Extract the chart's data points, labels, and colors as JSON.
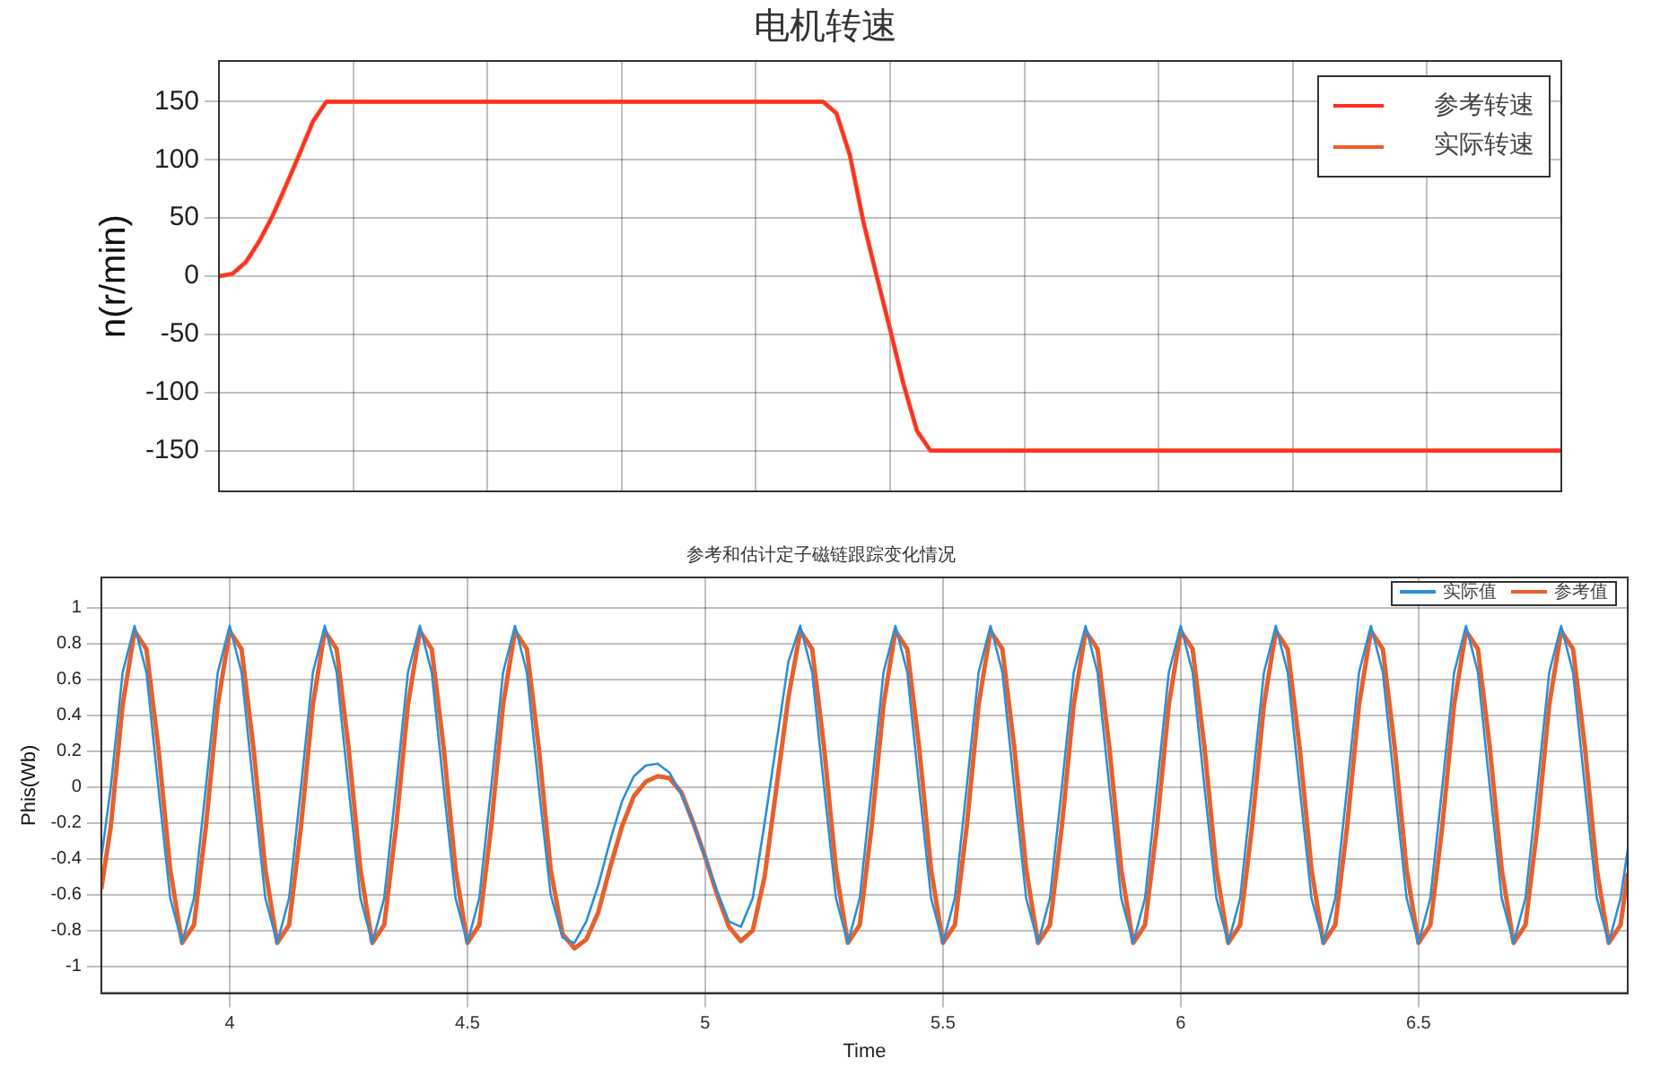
{
  "chart_data": [
    {
      "type": "line",
      "title": "电机转速",
      "ylabel": "n(r/min)",
      "categories": [
        null,
        null,
        null,
        null,
        null,
        null,
        null,
        null,
        null,
        null,
        null,
        null,
        null,
        null,
        null,
        null,
        null,
        null,
        null,
        null,
        null,
        null,
        null,
        null,
        null,
        null,
        null,
        null,
        null,
        null,
        null,
        null,
        null,
        null,
        null,
        null,
        null,
        null,
        null,
        null,
        null,
        null,
        null,
        null,
        null,
        null,
        null,
        null,
        null,
        null,
        null,
        null,
        null,
        null,
        null,
        null,
        null,
        null,
        null,
        null,
        null,
        null,
        null,
        null,
        null,
        null,
        null,
        null,
        null,
        null,
        null,
        null,
        null,
        null,
        null,
        null,
        null,
        null,
        null,
        null,
        null,
        null,
        null,
        null,
        null,
        null,
        null,
        null,
        null,
        null,
        null,
        null,
        null,
        null,
        null,
        null,
        null,
        null,
        null,
        null,
        null
      ],
      "series": [
        {
          "name": "参考转速",
          "color": "#ff2a2a",
          "values": [
            0,
            2,
            12,
            30,
            52,
            78,
            105,
            133,
            150,
            150,
            150,
            150,
            150,
            150,
            150,
            150,
            150,
            150,
            150,
            150,
            150,
            150,
            150,
            150,
            150,
            150,
            150,
            150,
            150,
            150,
            150,
            150,
            150,
            150,
            150,
            150,
            150,
            150,
            150,
            150,
            150,
            150,
            150,
            150,
            150,
            150,
            140,
            104,
            47,
            0,
            -46,
            -93,
            -133,
            -150,
            -150,
            -150,
            -150,
            -150,
            -150,
            -150,
            -150,
            -150,
            -150,
            -150,
            -150,
            -150,
            -150,
            -150,
            -150,
            -150,
            -150,
            -150,
            -150,
            -150,
            -150,
            -150,
            -150,
            -150,
            -150,
            -150,
            -150,
            -150,
            -150,
            -150,
            -150,
            -150,
            -150,
            -150,
            -150,
            -150,
            -150,
            -150,
            -150,
            -150,
            -150,
            -150,
            -150,
            -150,
            -150,
            -150,
            -150
          ]
        },
        {
          "name": "实际转速",
          "color": "#f05a28",
          "values": [
            0,
            2,
            12,
            30,
            52,
            78,
            105,
            133,
            150,
            150,
            150,
            150,
            150,
            150,
            150,
            150,
            150,
            150,
            150,
            150,
            150,
            150,
            150,
            150,
            150,
            150,
            150,
            150,
            150,
            150,
            150,
            150,
            150,
            150,
            150,
            150,
            150,
            150,
            150,
            150,
            150,
            150,
            150,
            150,
            150,
            150,
            140,
            104,
            47,
            0,
            -46,
            -93,
            -133,
            -150,
            -150,
            -150,
            -150,
            -150,
            -150,
            -150,
            -150,
            -150,
            -150,
            -150,
            -150,
            -150,
            -150,
            -150,
            -150,
            -150,
            -150,
            -150,
            -150,
            -150,
            -150,
            -150,
            -150,
            -150,
            -150,
            -150,
            -150,
            -150,
            -150,
            -150,
            -150,
            -150,
            -150,
            -150,
            -150,
            -150,
            -150,
            -150,
            -150,
            -150,
            -150,
            -150,
            -150,
            -150,
            -150,
            -150,
            -150
          ]
        }
      ],
      "ylim": [
        -185,
        185
      ],
      "yticks": [
        -150,
        -100,
        -50,
        0,
        50,
        100,
        150
      ],
      "grid": true,
      "legend": "top right",
      "tick_labels": "y"
    },
    {
      "type": "line",
      "title": "参考和估计定子磁链跟踪变化情况",
      "xlabel": "Time",
      "ylabel": "Phis(Wb)",
      "x": [
        3.73,
        3.75,
        3.775,
        3.8,
        3.825,
        3.85,
        3.875,
        3.9,
        3.925,
        3.95,
        3.975,
        4,
        4.025,
        4.05,
        4.075,
        4.1,
        4.125,
        4.15,
        4.175,
        4.2,
        4.225,
        4.25,
        4.275,
        4.3,
        4.325,
        4.35,
        4.375,
        4.4,
        4.425,
        4.45,
        4.475,
        4.5,
        4.525,
        4.55,
        4.575,
        4.6,
        4.625,
        4.65,
        4.675,
        4.7,
        4.725,
        4.75,
        4.775,
        4.8,
        4.825,
        4.85,
        4.875,
        4.9,
        4.925,
        4.95,
        4.975,
        5,
        5.025,
        5.05,
        5.075,
        5.1,
        5.125,
        5.15,
        5.175,
        5.2,
        5.225,
        5.25,
        5.275,
        5.3,
        5.325,
        5.35,
        5.375,
        5.4,
        5.425,
        5.45,
        5.475,
        5.5,
        5.525,
        5.55,
        5.575,
        5.6,
        5.625,
        5.65,
        5.675,
        5.7,
        5.725,
        5.75,
        5.775,
        5.8,
        5.825,
        5.85,
        5.875,
        5.9,
        5.925,
        5.95,
        5.975,
        6,
        6.025,
        6.05,
        6.075,
        6.1,
        6.125,
        6.15,
        6.175,
        6.2,
        6.225,
        6.25,
        6.275,
        6.3,
        6.325,
        6.35,
        6.375,
        6.4,
        6.425,
        6.45,
        6.475,
        6.5,
        6.525,
        6.55,
        6.575,
        6.6,
        6.625,
        6.65,
        6.675,
        6.7,
        6.725,
        6.75,
        6.775,
        6.8,
        6.825,
        6.85,
        6.875,
        6.9,
        6.925,
        6.94
      ],
      "series": [
        {
          "name": "实际值",
          "color": "#2b8fd8",
          "values": [
            -0.4,
            0,
            0.64,
            0.9,
            0.64,
            0,
            -0.62,
            -0.87,
            -0.62,
            0,
            0.64,
            0.9,
            0.64,
            0,
            -0.62,
            -0.87,
            -0.62,
            0,
            0.64,
            0.9,
            0.64,
            0,
            -0.62,
            -0.87,
            -0.62,
            0,
            0.64,
            0.9,
            0.64,
            0,
            -0.62,
            -0.87,
            -0.62,
            0,
            0.64,
            0.9,
            0.64,
            0,
            -0.6,
            -0.84,
            -0.87,
            -0.75,
            -0.55,
            -0.3,
            -0.08,
            0.06,
            0.12,
            0.13,
            0.08,
            -0.04,
            -0.2,
            -0.39,
            -0.58,
            -0.75,
            -0.78,
            -0.62,
            -0.2,
            0.25,
            0.7,
            0.9,
            0.64,
            0,
            -0.62,
            -0.87,
            -0.62,
            0,
            0.64,
            0.9,
            0.64,
            0,
            -0.62,
            -0.87,
            -0.62,
            0,
            0.64,
            0.9,
            0.64,
            0,
            -0.62,
            -0.87,
            -0.62,
            0,
            0.64,
            0.9,
            0.64,
            0,
            -0.62,
            -0.87,
            -0.62,
            0,
            0.64,
            0.9,
            0.64,
            0,
            -0.62,
            -0.87,
            -0.62,
            0,
            0.64,
            0.9,
            0.64,
            0,
            -0.62,
            -0.87,
            -0.62,
            0,
            0.64,
            0.9,
            0.64,
            0,
            -0.62,
            -0.87,
            -0.62,
            0,
            0.64,
            0.9,
            0.64,
            0,
            -0.62,
            -0.87,
            -0.62,
            0,
            0.64,
            0.9,
            0.64,
            0,
            -0.62,
            -0.87,
            -0.62,
            -0.35
          ]
        },
        {
          "name": "参考值",
          "color": "#e8602c",
          "values": [
            -0.57,
            -0.22,
            0.46,
            0.87,
            0.77,
            0.22,
            -0.46,
            -0.87,
            -0.77,
            -0.22,
            0.46,
            0.87,
            0.77,
            0.22,
            -0.46,
            -0.87,
            -0.77,
            -0.22,
            0.46,
            0.87,
            0.77,
            0.22,
            -0.46,
            -0.87,
            -0.77,
            -0.22,
            0.46,
            0.87,
            0.77,
            0.22,
            -0.46,
            -0.87,
            -0.77,
            -0.22,
            0.46,
            0.87,
            0.77,
            0.22,
            -0.46,
            -0.82,
            -0.9,
            -0.85,
            -0.7,
            -0.45,
            -0.22,
            -0.05,
            0.03,
            0.06,
            0.05,
            -0.03,
            -0.2,
            -0.39,
            -0.6,
            -0.78,
            -0.86,
            -0.8,
            -0.5,
            0,
            0.5,
            0.87,
            0.77,
            0.22,
            -0.46,
            -0.87,
            -0.77,
            -0.22,
            0.46,
            0.87,
            0.77,
            0.22,
            -0.46,
            -0.87,
            -0.77,
            -0.22,
            0.46,
            0.87,
            0.77,
            0.22,
            -0.46,
            -0.87,
            -0.77,
            -0.22,
            0.46,
            0.87,
            0.77,
            0.22,
            -0.46,
            -0.87,
            -0.77,
            -0.22,
            0.46,
            0.87,
            0.77,
            0.22,
            -0.46,
            -0.87,
            -0.77,
            -0.22,
            0.46,
            0.87,
            0.77,
            0.22,
            -0.46,
            -0.87,
            -0.77,
            -0.22,
            0.46,
            0.87,
            0.77,
            0.22,
            -0.46,
            -0.87,
            -0.77,
            -0.22,
            0.46,
            0.87,
            0.77,
            0.22,
            -0.46,
            -0.87,
            -0.77,
            -0.22,
            0.46,
            0.87,
            0.77,
            0.22,
            -0.46,
            -0.87,
            -0.77,
            -0.48
          ]
        }
      ],
      "xlim": [
        3.73,
        6.94
      ],
      "xticks": [
        4,
        4.5,
        5,
        5.5,
        6,
        6.5
      ],
      "ylim": [
        -1.15,
        1.17
      ],
      "yticks": [
        -1,
        -0.8,
        -0.6,
        -0.4,
        -0.2,
        0,
        0.2,
        0.4,
        0.6,
        0.8,
        1
      ],
      "grid": true,
      "legend": "top right"
    }
  ]
}
